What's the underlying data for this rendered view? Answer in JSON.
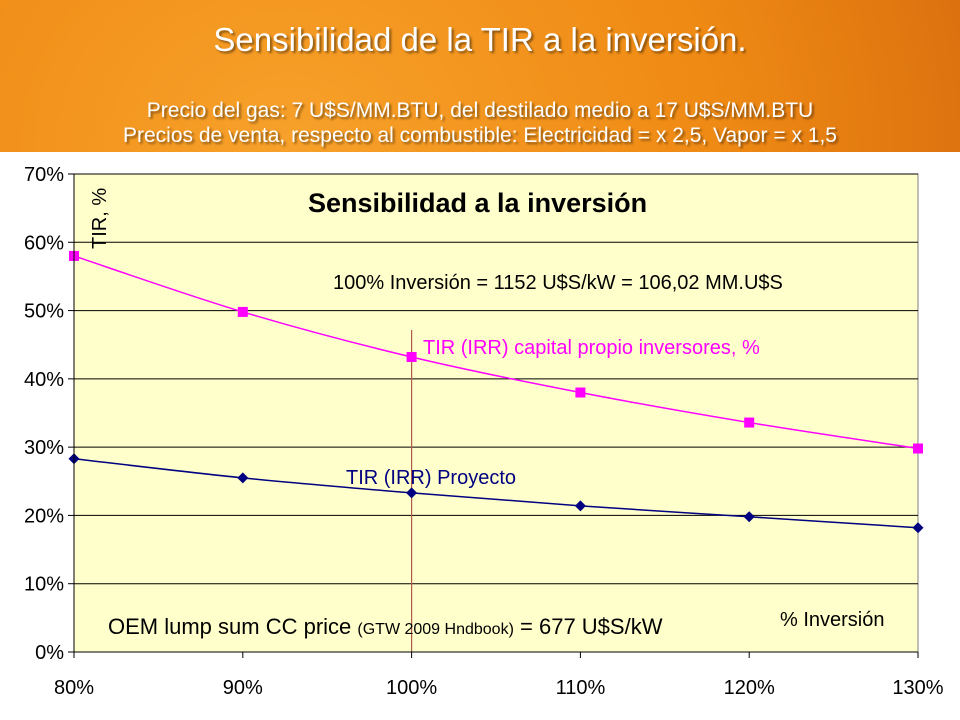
{
  "slide": {
    "title": "Sensibilidad  de la TIR a la inversión.",
    "subtitle_1": "Precio del gas: 7 U$S/MM.BTU, del destilado medio a 17 U$S/MM.BTU",
    "subtitle_2": "Precios de venta, respecto al combustible: Electricidad = x 2,5, Vapor = x 1,5"
  },
  "chart_data": {
    "type": "line",
    "title": "Sensibilidad a la inversión",
    "xlabel": "% Inversión",
    "ylabel": "TIR, %",
    "categories": [
      "80%",
      "90%",
      "100%",
      "110%",
      "120%",
      "130%"
    ],
    "x": [
      80,
      90,
      100,
      110,
      120,
      130
    ],
    "y_ticks": [
      "0%",
      "10%",
      "20%",
      "30%",
      "40%",
      "50%",
      "60%",
      "70%"
    ],
    "ylim": [
      0,
      70
    ],
    "grid": "horizontal",
    "reference_line_x": 100,
    "series": [
      {
        "name": "TIR (IRR) capital propio inversores, %",
        "color": "#ff00ff",
        "marker": "square",
        "values": [
          58.0,
          49.8,
          43.2,
          38.0,
          33.6,
          29.8
        ]
      },
      {
        "name": "TIR (IRR) Proyecto",
        "color": "#000080",
        "marker": "diamond",
        "values": [
          28.3,
          25.5,
          23.3,
          21.4,
          19.8,
          18.2
        ]
      }
    ],
    "annotations": {
      "investment_note": "100% Inversión = 1152 U$S/kW = 106,02 MM.U$S",
      "oem_part1": "OEM lump sum CC price ",
      "oem_part2": "(GTW 2009 Hndbook)",
      "oem_part3": " = 677 U$S/kW"
    },
    "colors": {
      "plot_background": "#ffffcc",
      "grid": "#000000",
      "reference_line": "#b05a4a"
    }
  }
}
